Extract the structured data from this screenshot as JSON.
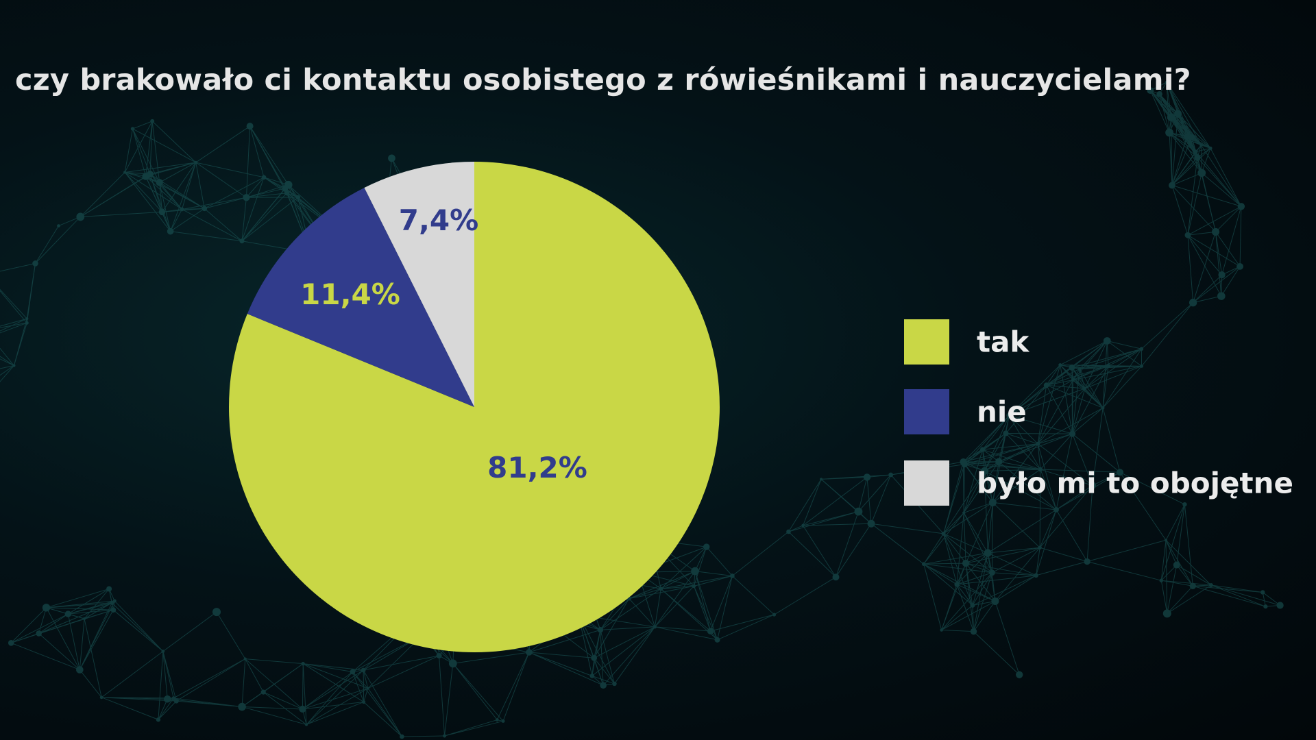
{
  "title": "czy brakowało ci kontaktu osobistego z rówieśnikami i nauczycielami?",
  "colors": {
    "background": "#03080c",
    "network": "#1d5c5c",
    "tak": "#c9d746",
    "nie": "#313c8c",
    "obojetne": "#d8d8d8"
  },
  "chart_data": {
    "type": "pie",
    "title": "czy brakowało ci kontaktu osobistego z rówieśnikami i nauczycielami?",
    "start_angle": "12 o'clock",
    "direction": "clockwise",
    "legend_position": "right",
    "slices": [
      {
        "name": "tak",
        "value": 81.2,
        "label": "81,2%",
        "color": "#c9d746",
        "label_color": "#313c8c"
      },
      {
        "name": "nie",
        "value": 11.4,
        "label": "11,4%",
        "color": "#313c8c",
        "label_color": "#c9d746"
      },
      {
        "name": "było mi to obojętne",
        "value": 7.4,
        "label": "7,4%",
        "color": "#d8d8d8",
        "label_color": "#313c8c"
      }
    ]
  },
  "legend": {
    "items": [
      {
        "label": "tak",
        "color": "#c9d746"
      },
      {
        "label": "nie",
        "color": "#313c8c"
      },
      {
        "label": "było mi to obojętne",
        "color": "#d8d8d8"
      }
    ]
  }
}
